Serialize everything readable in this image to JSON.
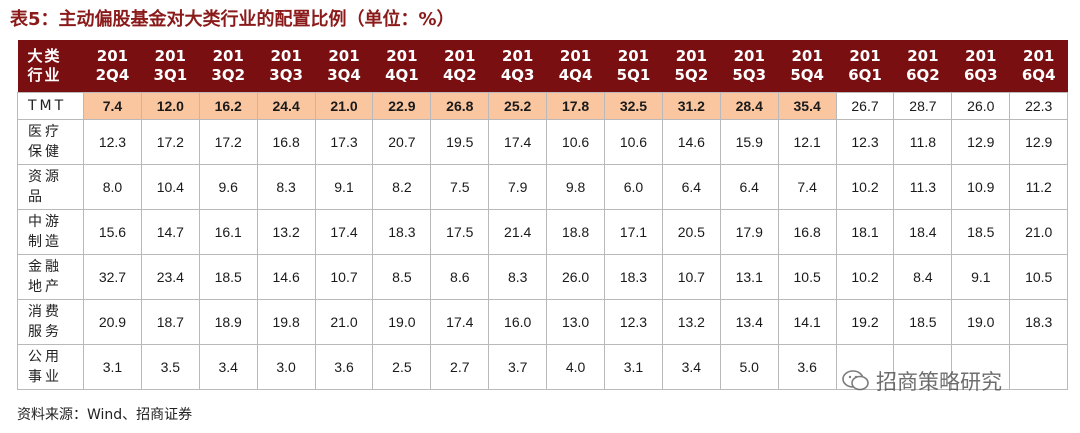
{
  "title": "表5：主动偏股基金对大类行业的配置比例（单位：%）",
  "header": {
    "corner_line1": "大类",
    "corner_line2": "行业",
    "periods": [
      [
        "201",
        "2Q4"
      ],
      [
        "201",
        "3Q1"
      ],
      [
        "201",
        "3Q2"
      ],
      [
        "201",
        "3Q3"
      ],
      [
        "201",
        "3Q4"
      ],
      [
        "201",
        "4Q1"
      ],
      [
        "201",
        "4Q2"
      ],
      [
        "201",
        "4Q3"
      ],
      [
        "201",
        "4Q4"
      ],
      [
        "201",
        "5Q1"
      ],
      [
        "201",
        "5Q2"
      ],
      [
        "201",
        "5Q3"
      ],
      [
        "201",
        "5Q4"
      ],
      [
        "201",
        "6Q1"
      ],
      [
        "201",
        "6Q2"
      ],
      [
        "201",
        "6Q3"
      ],
      [
        "201",
        "6Q4"
      ]
    ]
  },
  "rows": [
    {
      "label": [
        "TMT"
      ],
      "values": [
        "7.4",
        "12.0",
        "16.2",
        "24.4",
        "21.0",
        "22.9",
        "26.8",
        "25.2",
        "17.8",
        "32.5",
        "31.2",
        "28.4",
        "35.4",
        "26.7",
        "28.7",
        "26.0",
        "22.3"
      ],
      "highlight_count": 13
    },
    {
      "label": [
        "医疗",
        "保健"
      ],
      "values": [
        "12.3",
        "17.2",
        "17.2",
        "16.8",
        "17.3",
        "20.7",
        "19.5",
        "17.4",
        "10.6",
        "10.6",
        "14.6",
        "15.9",
        "12.1",
        "12.3",
        "11.8",
        "12.9",
        "12.9"
      ],
      "highlight_count": 0
    },
    {
      "label": [
        "资源",
        "品"
      ],
      "values": [
        "8.0",
        "10.4",
        "9.6",
        "8.3",
        "9.1",
        "8.2",
        "7.5",
        "7.9",
        "9.8",
        "6.0",
        "6.4",
        "6.4",
        "7.4",
        "10.2",
        "11.3",
        "10.9",
        "11.2"
      ],
      "highlight_count": 0
    },
    {
      "label": [
        "中游",
        "制造"
      ],
      "values": [
        "15.6",
        "14.7",
        "16.1",
        "13.2",
        "17.4",
        "18.3",
        "17.5",
        "21.4",
        "18.8",
        "17.1",
        "20.5",
        "17.9",
        "16.8",
        "18.1",
        "18.4",
        "18.5",
        "21.0"
      ],
      "highlight_count": 0
    },
    {
      "label": [
        "金融",
        "地产"
      ],
      "values": [
        "32.7",
        "23.4",
        "18.5",
        "14.6",
        "10.7",
        "8.5",
        "8.6",
        "8.3",
        "26.0",
        "18.3",
        "10.7",
        "13.1",
        "10.5",
        "10.2",
        "8.4",
        "9.1",
        "10.5"
      ],
      "highlight_count": 0
    },
    {
      "label": [
        "消费",
        "服务"
      ],
      "values": [
        "20.9",
        "18.7",
        "18.9",
        "19.8",
        "21.0",
        "19.0",
        "17.4",
        "16.0",
        "13.0",
        "12.3",
        "13.2",
        "13.4",
        "14.1",
        "19.2",
        "18.5",
        "19.0",
        "18.3"
      ],
      "highlight_count": 0
    },
    {
      "label": [
        "公用",
        "事业"
      ],
      "values": [
        "3.1",
        "3.5",
        "3.4",
        "3.0",
        "3.6",
        "2.5",
        "2.7",
        "3.7",
        "4.0",
        "3.1",
        "3.4",
        "5.0",
        "3.6",
        "",
        "",
        "",
        ""
      ],
      "highlight_count": 0
    }
  ],
  "source": "资料来源：Wind、招商证券",
  "watermark": "招商策略研究",
  "colors": {
    "header_bg": "#7a0f12",
    "highlight": "#fac6a0",
    "title": "#8b1a1a"
  }
}
